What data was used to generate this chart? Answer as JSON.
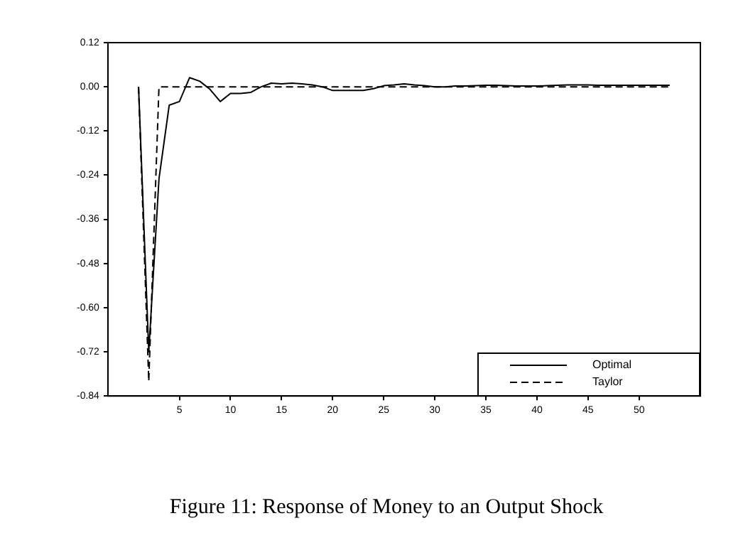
{
  "chart_data": {
    "type": "line",
    "title": "Figure 11: Response of Money to an Output Shock",
    "xlim": [
      -2,
      56
    ],
    "xticks": [
      5,
      10,
      15,
      20,
      25,
      30,
      35,
      40,
      45,
      50
    ],
    "ylim": [
      -0.84,
      0.12
    ],
    "yticks": [
      {
        "value": 0.12,
        "label": "0.12"
      },
      {
        "value": 0,
        "label": "0.00"
      },
      -0.12,
      -0.24,
      -0.36,
      -0.48,
      {
        "value": -0.6,
        "label": "-0.60"
      },
      -0.72,
      -0.84
    ],
    "grid": false,
    "legend": "bottom right",
    "marker": "none",
    "series": [
      {
        "name": "Optimal",
        "color": "#000000",
        "line_style": "solid",
        "x": [
          1,
          2,
          3,
          4,
          5,
          6,
          7,
          8,
          9,
          10,
          11,
          12,
          13,
          14,
          15,
          16,
          17,
          18,
          19,
          20,
          21,
          22,
          23,
          24,
          25,
          26,
          27,
          28,
          29,
          30,
          31,
          32,
          33,
          34,
          35,
          36,
          37,
          38,
          39,
          40,
          41,
          42,
          43,
          44,
          45,
          46,
          47,
          48,
          49,
          50,
          51,
          52,
          53
        ],
        "values": [
          0,
          -0.72,
          -0.25,
          -0.05,
          -0.04,
          0.025,
          0.015,
          -0.007,
          -0.04,
          -0.018,
          -0.018,
          -0.015,
          0,
          0.01,
          0.008,
          0.01,
          0.008,
          0.005,
          0,
          -0.01,
          -0.01,
          -0.01,
          -0.01,
          -0.005,
          0.003,
          0.005,
          0.008,
          0.005,
          0.003,
          0,
          0,
          0.002,
          0.002,
          0.003,
          0.004,
          0.004,
          0.003,
          0.002,
          0.002,
          0.002,
          0.003,
          0.004,
          0.005,
          0.005,
          0.005,
          0.004,
          0.004,
          0.004,
          0.004,
          0.004,
          0.004,
          0.004,
          0.004
        ]
      },
      {
        "name": "Taylor",
        "color": "#000000",
        "line_style": "dashed",
        "x": [
          1,
          2,
          3,
          4,
          5,
          6,
          7,
          8,
          9,
          10,
          11,
          12,
          13,
          14,
          15,
          16,
          17,
          18,
          19,
          20,
          21,
          22,
          23,
          24,
          25,
          26,
          27,
          28,
          29,
          30,
          31,
          32,
          33,
          34,
          35,
          36,
          37,
          38,
          39,
          40,
          41,
          42,
          43,
          44,
          45,
          46,
          47,
          48,
          49,
          50,
          51,
          52,
          53
        ],
        "values": [
          0,
          -0.8,
          0,
          0,
          0,
          0,
          0,
          0,
          0,
          0,
          0,
          0,
          0,
          0,
          0,
          0,
          0,
          0,
          0,
          0,
          0,
          0,
          0,
          0,
          0,
          0,
          0,
          0,
          0,
          0,
          0,
          0,
          0,
          0,
          0,
          0,
          0,
          0,
          0,
          0,
          0,
          0,
          0,
          0,
          0,
          0,
          0,
          0,
          0,
          0,
          0,
          0,
          0
        ]
      }
    ]
  }
}
